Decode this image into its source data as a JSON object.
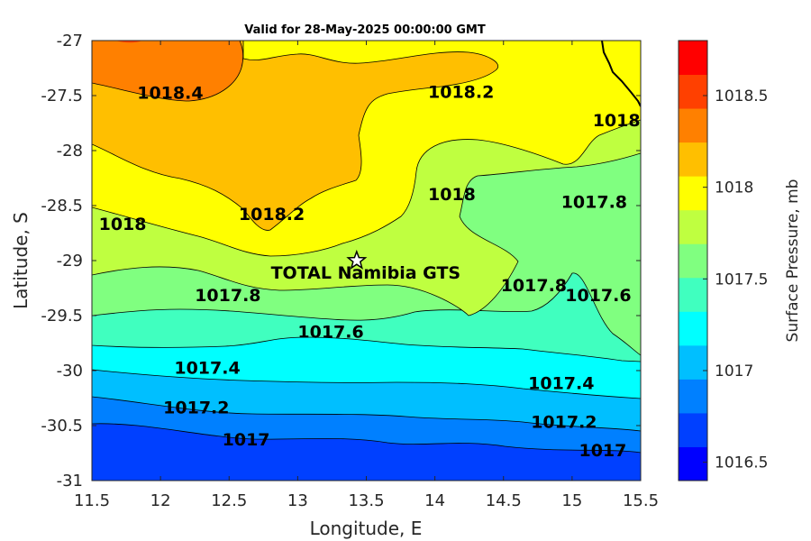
{
  "chart_data": {
    "type": "filled-contour",
    "title": "Valid for 28-May-2025 00:00:00 GMT",
    "xlabel": "Longitude, E",
    "ylabel": "Latitude, S",
    "xlim": [
      11.5,
      15.5
    ],
    "ylim": [
      -31,
      -27
    ],
    "xticks": [
      "11.5",
      "12",
      "12.5",
      "13",
      "13.5",
      "14",
      "14.5",
      "15",
      "15.5"
    ],
    "yticks": [
      "-27",
      "-27.5",
      "-28",
      "-28.5",
      "-29",
      "-29.5",
      "-30",
      "-30.5",
      "-31"
    ],
    "colorbar": {
      "label": "Surface Pressure, mb",
      "range": [
        1016.4,
        1018.8
      ],
      "step": 0.1,
      "ticks": [
        "1016.5",
        "1017",
        "1017.5",
        "1018",
        "1018.5"
      ],
      "colors": [
        "#0000ff",
        "#0040ff",
        "#0080ff",
        "#00bfff",
        "#00ffff",
        "#40ffbf",
        "#80ff80",
        "#bfff40",
        "#ffff00",
        "#ffbf00",
        "#ff8000",
        "#ff4000",
        "#ff0000"
      ]
    },
    "contour_labels": [
      {
        "text": "1018.4",
        "lon": 11.83,
        "lat": -27.53
      },
      {
        "text": "1018.2",
        "lon": 13.95,
        "lat": -27.52
      },
      {
        "text": "1018",
        "lon": 15.15,
        "lat": -27.78
      },
      {
        "text": "1018.2",
        "lon": 12.57,
        "lat": -28.63
      },
      {
        "text": "1018",
        "lon": 11.55,
        "lat": -28.72
      },
      {
        "text": "1018",
        "lon": 13.95,
        "lat": -28.45
      },
      {
        "text": "1017.8",
        "lon": 14.92,
        "lat": -28.52
      },
      {
        "text": "1017.8",
        "lon": 12.25,
        "lat": -29.37
      },
      {
        "text": "1017.8",
        "lon": 14.48,
        "lat": -29.28
      },
      {
        "text": "1017.6",
        "lon": 13.0,
        "lat": -29.7
      },
      {
        "text": "1017.6",
        "lon": 14.95,
        "lat": -29.37
      },
      {
        "text": "1017.4",
        "lon": 12.1,
        "lat": -30.03
      },
      {
        "text": "1017.4",
        "lon": 14.68,
        "lat": -30.17
      },
      {
        "text": "1017.2",
        "lon": 12.02,
        "lat": -30.39
      },
      {
        "text": "1017.2",
        "lon": 14.7,
        "lat": -30.52
      },
      {
        "text": "1017",
        "lon": 12.45,
        "lat": -30.68
      },
      {
        "text": "1017",
        "lon": 15.05,
        "lat": -30.78
      }
    ],
    "station": {
      "name": "TOTAL Namibia GTS",
      "lon": 13.43,
      "lat": -29.0
    }
  }
}
